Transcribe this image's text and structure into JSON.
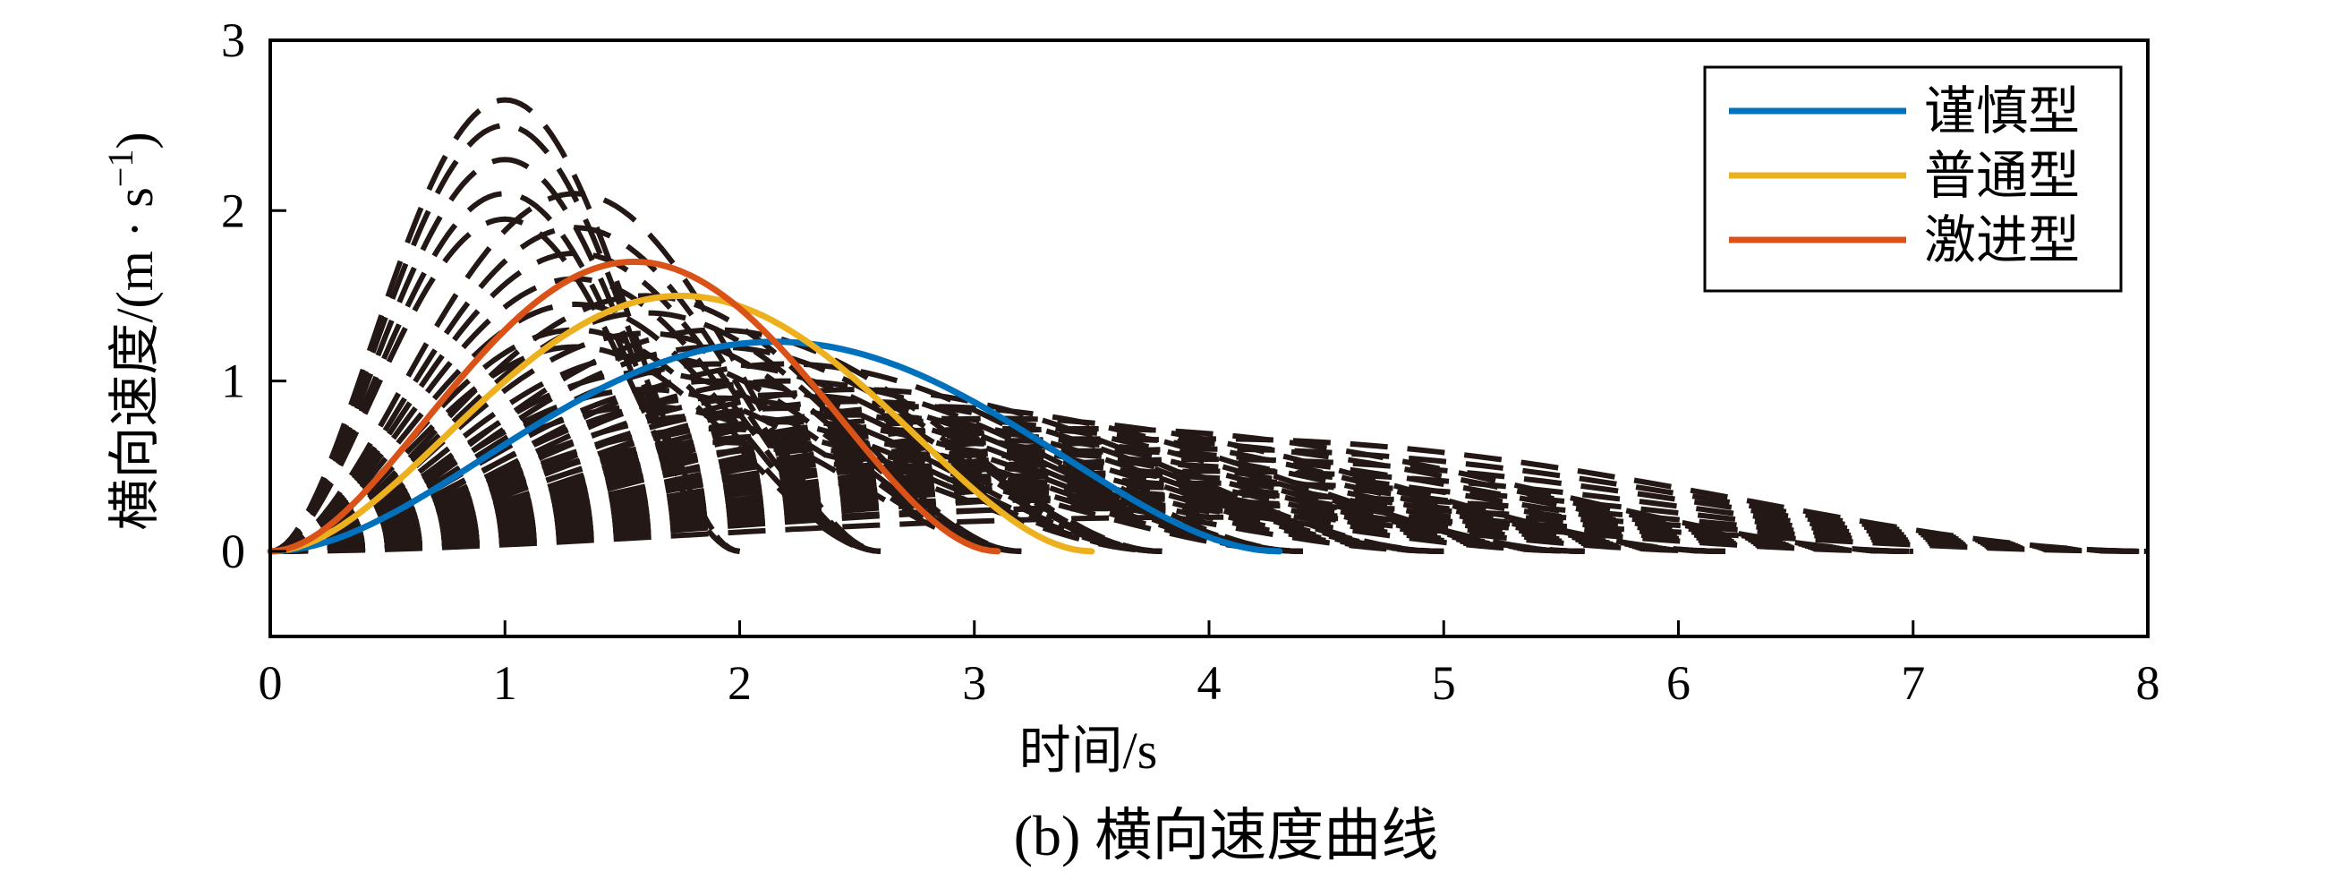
{
  "chart_data": {
    "type": "line",
    "caption": "(b) 横向速度曲线",
    "xlabel": "时间/s",
    "ylabel": "横向速度/(m · s",
    "ylabel_superscript": "−1",
    "ylabel_close": ")",
    "xlim": [
      0,
      8
    ],
    "ylim": [
      -0.5,
      3
    ],
    "x_ticks": [
      "0",
      "1",
      "2",
      "3",
      "4",
      "5",
      "6",
      "7",
      "8"
    ],
    "y_ticks": [
      "0",
      "1",
      "2",
      "3"
    ],
    "grid": false,
    "legend_position": "top-right",
    "series": [
      {
        "name": "谨慎型",
        "color": "#0072BD",
        "style": "solid",
        "duration": 4.3,
        "peak": 1.23
      },
      {
        "name": "普通型",
        "color": "#EDB120",
        "style": "solid",
        "duration": 3.5,
        "peak": 1.5
      },
      {
        "name": "激进型",
        "color": "#D95319",
        "style": "solid",
        "duration": 3.1,
        "peak": 1.7
      }
    ],
    "candidate_trajectories": {
      "color": "#231815",
      "style": "dashed",
      "profile": "lateral velocity for lane change of duration T: v(t) = peak * 16 * (t/T)^2 * (1 - t/T)^2",
      "groups": [
        {
          "duration": 2.0,
          "peaks": [
            2.65,
            2.5,
            2.3,
            2.1,
            1.95
          ]
        },
        {
          "duration": 2.6,
          "peaks": [
            2.1,
            1.9,
            1.75,
            1.6,
            1.45,
            1.3,
            1.2
          ]
        },
        {
          "duration": 3.2,
          "peaks": [
            1.5,
            1.4,
            1.28,
            1.15,
            1.05,
            0.95,
            0.85
          ]
        },
        {
          "duration": 3.8,
          "peaks": [
            1.3,
            1.2,
            1.1,
            1.0,
            0.9,
            0.8,
            0.72,
            0.64
          ]
        },
        {
          "duration": 4.4,
          "peaks": [
            1.1,
            1.0,
            0.92,
            0.84,
            0.76,
            0.68,
            0.6,
            0.52
          ]
        },
        {
          "duration": 5.0,
          "peaks": [
            0.95,
            0.88,
            0.8,
            0.72,
            0.64,
            0.56,
            0.48,
            0.4
          ]
        },
        {
          "duration": 5.6,
          "peaks": [
            0.85,
            0.78,
            0.71,
            0.64,
            0.57,
            0.5,
            0.43,
            0.36
          ]
        },
        {
          "duration": 6.2,
          "peaks": [
            0.78,
            0.72,
            0.65,
            0.58,
            0.51,
            0.44,
            0.37,
            0.3
          ]
        },
        {
          "duration": 7.0,
          "peaks": [
            0.72,
            0.66,
            0.59,
            0.52,
            0.45,
            0.38,
            0.31,
            0.25
          ]
        },
        {
          "duration": 8.0,
          "peaks": [
            0.66,
            0.6,
            0.54,
            0.47,
            0.4,
            0.33,
            0.27,
            0.2
          ]
        }
      ]
    }
  }
}
